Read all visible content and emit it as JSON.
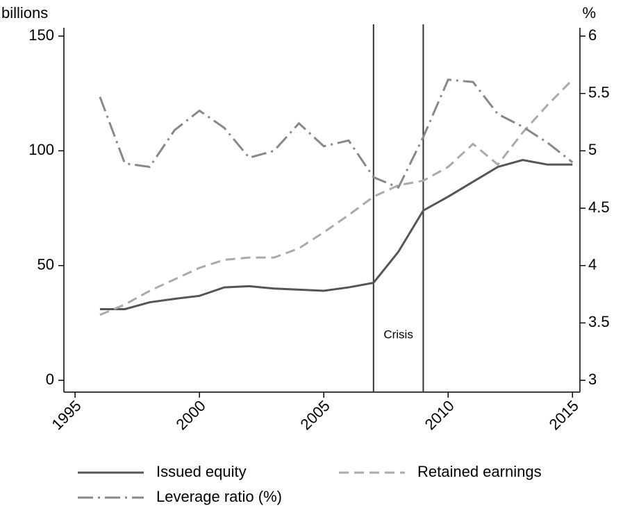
{
  "chart_data": {
    "type": "line",
    "y_label": "billions",
    "y2_label": "%",
    "x": [
      1996,
      1997,
      1998,
      1999,
      2000,
      2001,
      2002,
      2003,
      2004,
      2005,
      2006,
      2007,
      2008,
      2009,
      2010,
      2011,
      2012,
      2013,
      2014,
      2015
    ],
    "series": [
      {
        "name": "Issued equity",
        "color": "#555555",
        "style": "solid",
        "values": [
          31,
          31,
          34,
          35.5,
          36.8,
          40.5,
          41,
          40,
          39.5,
          39,
          40.5,
          42.5,
          56,
          74,
          80,
          86.5,
          93,
          96,
          94,
          94
        ]
      },
      {
        "name": "Retained earnings",
        "color": "#aaaaaa",
        "style": "dashed",
        "values": [
          28.5,
          33,
          39,
          44,
          49,
          52.5,
          53.5,
          53.5,
          57.5,
          64.5,
          72,
          80,
          85,
          87,
          93,
          103,
          94,
          108,
          120,
          131
        ]
      },
      {
        "name": "Leverage ratio (%)",
        "color": "#888888",
        "style": "dashdot",
        "axis": "y2",
        "values": [
          5.47,
          4.89,
          4.86,
          5.18,
          5.35,
          5.2,
          4.94,
          5.0,
          5.24,
          5.04,
          5.09,
          4.77,
          4.68,
          5.12,
          5.62,
          5.6,
          5.32,
          5.21,
          5.07,
          4.9
        ]
      }
    ],
    "xlim": [
      1994.55,
      2015.3
    ],
    "xticks": [
      1995,
      2000,
      2005,
      2010,
      2015
    ],
    "ylim": [
      0,
      150
    ],
    "yticks": [
      0,
      50,
      100,
      150
    ],
    "y2lim": [
      3,
      6
    ],
    "y2ticks": [
      3,
      3.5,
      4,
      4.5,
      5,
      5.5,
      6
    ],
    "vlines": [
      2007,
      2009
    ],
    "annotation": "Crisis"
  }
}
